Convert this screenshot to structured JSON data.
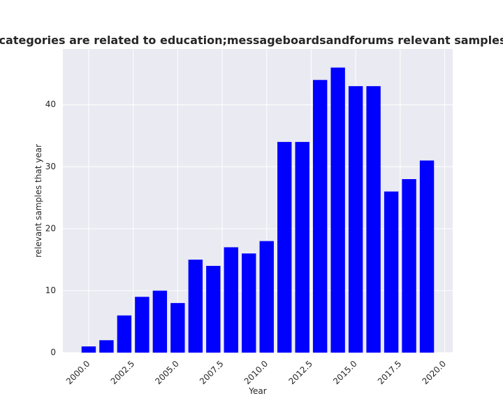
{
  "chart_data": {
    "type": "bar",
    "title": "Number of samples where categories are related to education;messageboardsandforums relevant samples that year in privacy policies",
    "xlabel": "Year",
    "ylabel": "relevant samples that year",
    "x": [
      2000,
      2001,
      2002,
      2003,
      2004,
      2005,
      2006,
      2007,
      2008,
      2009,
      2010,
      2011,
      2012,
      2013,
      2014,
      2015,
      2016,
      2017,
      2018,
      2019
    ],
    "values": [
      1,
      2,
      6,
      9,
      10,
      8,
      15,
      14,
      17,
      16,
      18,
      34,
      34,
      44,
      46,
      43,
      43,
      26,
      28,
      31
    ],
    "xlim": [
      1998.55,
      2020.45
    ],
    "ylim": [
      0,
      49
    ],
    "xticks": [
      2000,
      2002.5,
      2005,
      2007.5,
      2010,
      2012.5,
      2015,
      2017.5,
      2020
    ],
    "xtick_labels": [
      "2000.0",
      "2002.5",
      "2005.0",
      "2007.5",
      "2010.0",
      "2012.5",
      "2015.0",
      "2017.5",
      "2020.0"
    ],
    "yticks": [
      0,
      10,
      20,
      30,
      40
    ],
    "ytick_labels": [
      "0",
      "10",
      "20",
      "30",
      "40"
    ],
    "grid": true,
    "colors": {
      "bar": "#0000ff",
      "plot_background": "#eaeaf2",
      "grid": "#ffffff",
      "text": "#262626"
    }
  }
}
